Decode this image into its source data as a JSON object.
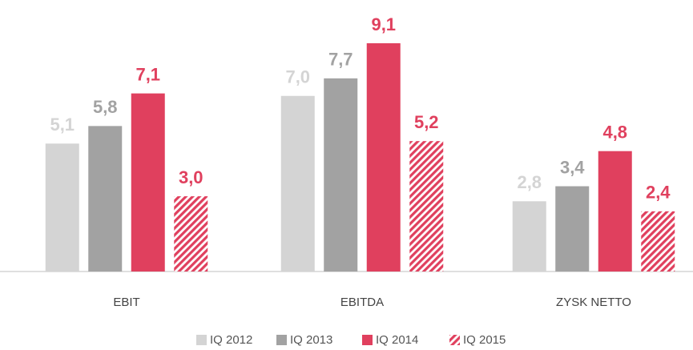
{
  "chart_data": {
    "type": "bar",
    "categories": [
      "EBIT",
      "EBITDA",
      "ZYSK NETTO"
    ],
    "series": [
      {
        "name": "IQ 2012",
        "color": "#d4d4d4",
        "values": [
          5.1,
          7.0,
          2.8
        ],
        "value_labels": [
          "5,1",
          "7,0",
          "2,8"
        ]
      },
      {
        "name": "IQ 2013",
        "color": "#a2a2a2",
        "values": [
          5.8,
          7.7,
          3.4
        ],
        "value_labels": [
          "5,8",
          "7,7",
          "3,4"
        ]
      },
      {
        "name": "IQ 2014",
        "color": "#e0405e",
        "values": [
          7.1,
          9.1,
          4.8
        ],
        "value_labels": [
          "7,1",
          "9,1",
          "4,8"
        ]
      },
      {
        "name": "IQ 2015",
        "color": "#e0405e",
        "pattern": "hatch",
        "values": [
          3.0,
          5.2,
          2.4
        ],
        "value_labels": [
          "3,0",
          "5,2",
          "2,4"
        ]
      }
    ],
    "legend": "bottom"
  }
}
